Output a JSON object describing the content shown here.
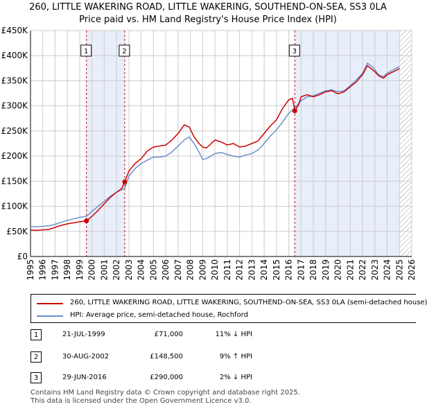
{
  "colors": {
    "property": "#cc0000",
    "hpi": "#6b8fc9",
    "shade": "#e8eefa",
    "grid": "#cccccc",
    "hatch": "#999999"
  },
  "chart_data": {
    "type": "line",
    "title": "260, LITTLE WAKERING ROAD, LITTLE WAKERING, SOUTHEND-ON-SEA, SS3 0LA",
    "subtitle": "Price paid vs. HM Land Registry's House Price Index (HPI)",
    "xlabel": "",
    "ylabel": "",
    "xlim": [
      1995,
      2026
    ],
    "ylim": [
      0,
      450000
    ],
    "y_ticks": [
      0,
      50000,
      100000,
      150000,
      200000,
      250000,
      300000,
      350000,
      400000,
      450000
    ],
    "y_tick_labels": [
      "£0",
      "£50K",
      "£100K",
      "£150K",
      "£200K",
      "£250K",
      "£300K",
      "£350K",
      "£400K",
      "£450K"
    ],
    "x_ticks": [
      "1995",
      "1996",
      "1997",
      "1998",
      "1999",
      "2000",
      "2001",
      "2002",
      "2003",
      "2004",
      "2005",
      "2006",
      "2007",
      "2008",
      "2009",
      "2010",
      "2011",
      "2012",
      "2013",
      "2014",
      "2015",
      "2016",
      "2017",
      "2018",
      "2019",
      "2020",
      "2021",
      "2022",
      "2023",
      "2024",
      "2025",
      "2026"
    ],
    "grid": true,
    "shaded_ranges": [
      [
        1999.55,
        2002.66
      ],
      [
        2016.49,
        2025.0
      ]
    ],
    "future_hatch_from": 2025.0,
    "series": [
      {
        "name": "260, LITTLE WAKERING ROAD, LITTLE WAKERING, SOUTHEND-ON-SEA, SS3 0LA (semi-detached house)",
        "color": "#cc0000",
        "x": [
          1995,
          1995.5,
          1996,
          1996.5,
          1997,
          1997.5,
          1998,
          1998.5,
          1999,
          1999.55,
          2000,
          2000.5,
          2001,
          2001.5,
          2002,
          2002.4,
          2002.66,
          2003,
          2003.5,
          2004,
          2004.5,
          2005,
          2005.5,
          2006,
          2006.5,
          2007,
          2007.5,
          2007.9,
          2008.3,
          2008.7,
          2009,
          2009.3,
          2009.7,
          2010,
          2010.5,
          2011,
          2011.5,
          2012,
          2012.5,
          2013,
          2013.5,
          2014,
          2014.5,
          2015,
          2015.5,
          2016,
          2016.3,
          2016.49,
          2016.8,
          2017,
          2017.5,
          2018,
          2018.5,
          2019,
          2019.5,
          2020,
          2020.5,
          2021,
          2021.5,
          2022,
          2022.4,
          2022.8,
          2023,
          2023.3,
          2023.7,
          2024,
          2024.5,
          2025
        ],
        "y": [
          53000,
          52000,
          53000,
          54000,
          58000,
          62000,
          65000,
          67000,
          69000,
          71000,
          80000,
          92000,
          105000,
          118000,
          128000,
          135000,
          148500,
          170000,
          185000,
          195000,
          210000,
          218000,
          220000,
          222000,
          232000,
          245000,
          262000,
          258000,
          238000,
          225000,
          218000,
          216000,
          225000,
          232000,
          228000,
          222000,
          225000,
          218000,
          220000,
          225000,
          230000,
          245000,
          260000,
          272000,
          295000,
          312000,
          315000,
          290000,
          302000,
          318000,
          322000,
          318000,
          322000,
          328000,
          330000,
          324000,
          328000,
          338000,
          348000,
          362000,
          380000,
          372000,
          368000,
          360000,
          355000,
          362000,
          368000,
          374000
        ]
      },
      {
        "name": "HPI: Average price, semi-detached house, Rochford",
        "color": "#6b8fc9",
        "x": [
          1995,
          1995.5,
          1996,
          1996.5,
          1997,
          1997.5,
          1998,
          1998.5,
          1999,
          1999.55,
          2000,
          2000.5,
          2001,
          2001.5,
          2002,
          2002.66,
          2003,
          2003.5,
          2004,
          2004.5,
          2005,
          2005.5,
          2006,
          2006.5,
          2007,
          2007.5,
          2007.9,
          2008.3,
          2008.7,
          2009,
          2009.3,
          2009.7,
          2010,
          2010.5,
          2011,
          2011.5,
          2012,
          2012.5,
          2013,
          2013.5,
          2014,
          2014.5,
          2015,
          2015.5,
          2016,
          2016.49,
          2017,
          2017.5,
          2018,
          2018.5,
          2019,
          2019.5,
          2020,
          2020.5,
          2021,
          2021.5,
          2022,
          2022.4,
          2022.8,
          2023,
          2023.3,
          2023.7,
          2024,
          2024.5,
          2025
        ],
        "y": [
          60000,
          59000,
          60000,
          61000,
          64000,
          68000,
          72000,
          75000,
          78000,
          80000,
          90000,
          100000,
          110000,
          120000,
          128000,
          136000,
          160000,
          175000,
          185000,
          192000,
          198000,
          198000,
          200000,
          208000,
          220000,
          232000,
          238000,
          225000,
          208000,
          193000,
          195000,
          200000,
          205000,
          207000,
          203000,
          200000,
          198000,
          202000,
          205000,
          212000,
          225000,
          240000,
          252000,
          268000,
          285000,
          296000,
          310000,
          318000,
          320000,
          325000,
          330000,
          332000,
          328000,
          330000,
          340000,
          352000,
          365000,
          385000,
          378000,
          372000,
          362000,
          358000,
          365000,
          372000,
          378000
        ]
      }
    ],
    "sales": [
      {
        "label": "1",
        "x": 1999.55,
        "y": 71000
      },
      {
        "label": "2",
        "x": 2002.66,
        "y": 148500
      },
      {
        "label": "3",
        "x": 2016.49,
        "y": 290000
      }
    ]
  },
  "legend": {
    "property_label": "260, LITTLE WAKERING ROAD, LITTLE WAKERING, SOUTHEND-ON-SEA, SS3 0LA (semi-detached house)",
    "hpi_label": "HPI: Average price, semi-detached house, Rochford"
  },
  "transactions": [
    {
      "num": "1",
      "date": "21-JUL-1999",
      "price": "£71,000",
      "hpi": "11% ↓ HPI"
    },
    {
      "num": "2",
      "date": "30-AUG-2002",
      "price": "£148,500",
      "hpi": "9% ↑ HPI"
    },
    {
      "num": "3",
      "date": "29-JUN-2016",
      "price": "£290,000",
      "hpi": "2% ↓ HPI"
    }
  ],
  "footer": {
    "line1": "Contains HM Land Registry data © Crown copyright and database right 2025.",
    "line2": "This data is licensed under the Open Government Licence v3.0."
  }
}
